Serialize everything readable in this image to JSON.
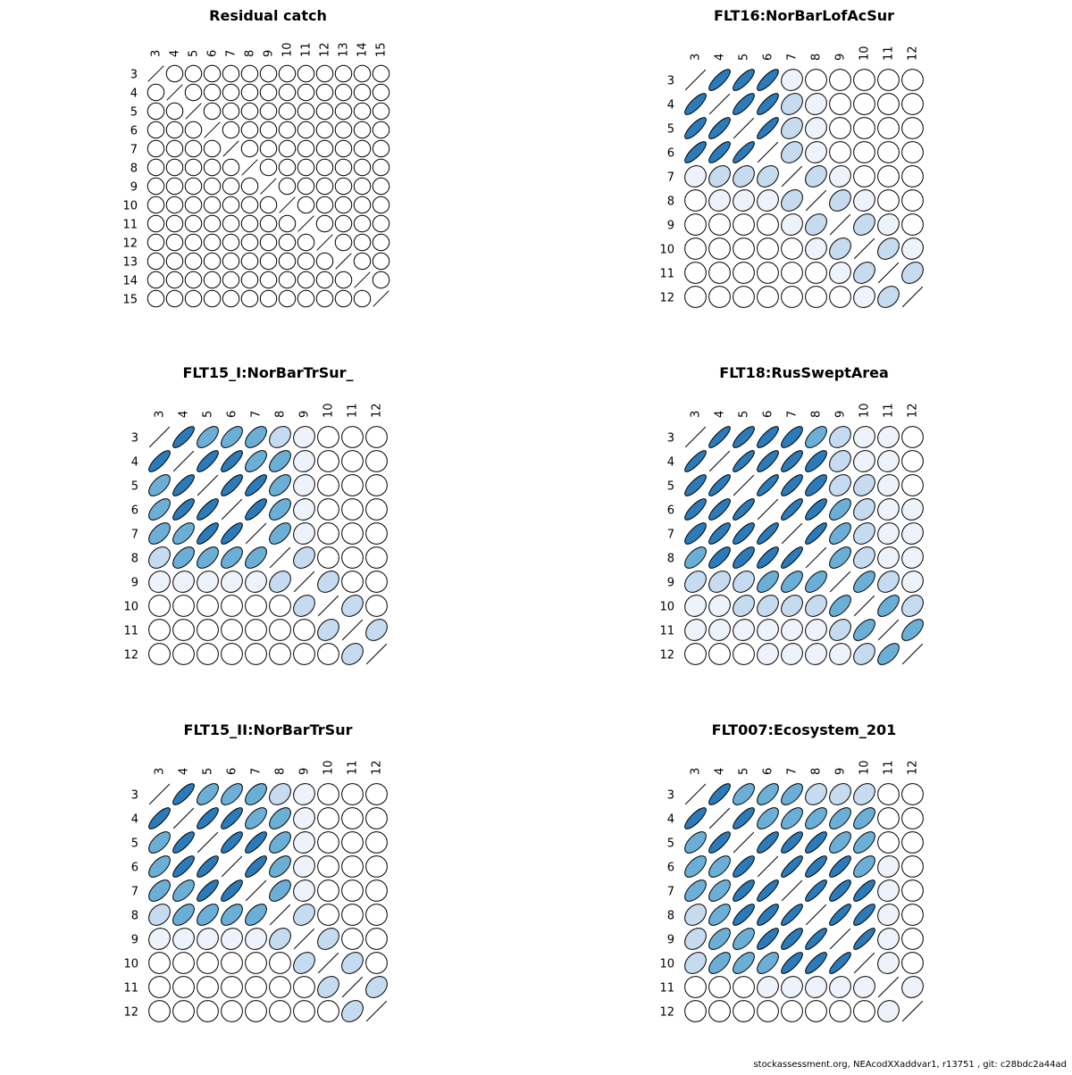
{
  "footer": "stockassessment.org, NEAcodXXaddvar1, r13751 , git: c28bdc2a44ad",
  "colors": {
    "outline": "#000000",
    "fill_scale": [
      "#ffffff",
      "#eef2fb",
      "#c6dbef",
      "#6baed6",
      "#2b7bba"
    ]
  },
  "chart_data": [
    {
      "type": "heatmap",
      "title": "Residual catch",
      "labels": [
        "3",
        "4",
        "5",
        "6",
        "7",
        "8",
        "9",
        "10",
        "11",
        "12",
        "13",
        "14",
        "15"
      ],
      "matrix": [
        [
          1,
          0,
          0,
          0,
          0,
          0,
          0,
          0,
          0,
          0,
          0,
          0,
          0
        ],
        [
          0,
          1,
          0,
          0,
          0,
          0,
          0,
          0,
          0,
          0,
          0,
          0,
          0
        ],
        [
          0,
          0,
          1,
          0,
          0,
          0,
          0,
          0,
          0,
          0,
          0,
          0,
          0
        ],
        [
          0,
          0,
          0,
          1,
          0,
          0,
          0,
          0,
          0,
          0,
          0,
          0,
          0
        ],
        [
          0,
          0,
          0,
          0,
          1,
          0,
          0,
          0,
          0,
          0,
          0,
          0,
          0
        ],
        [
          0,
          0,
          0,
          0,
          0,
          1,
          0,
          0,
          0,
          0,
          0,
          0,
          0
        ],
        [
          0,
          0,
          0,
          0,
          0,
          0,
          1,
          0,
          0,
          0,
          0,
          0,
          0
        ],
        [
          0,
          0,
          0,
          0,
          0,
          0,
          0,
          1,
          0,
          0,
          0,
          0,
          0
        ],
        [
          0,
          0,
          0,
          0,
          0,
          0,
          0,
          0,
          1,
          0,
          0,
          0,
          0
        ],
        [
          0,
          0,
          0,
          0,
          0,
          0,
          0,
          0,
          0,
          1,
          0,
          0,
          0
        ],
        [
          0,
          0,
          0,
          0,
          0,
          0,
          0,
          0,
          0,
          0,
          1,
          0,
          0
        ],
        [
          0,
          0,
          0,
          0,
          0,
          0,
          0,
          0,
          0,
          0,
          0,
          1,
          0
        ],
        [
          0,
          0,
          0,
          0,
          0,
          0,
          0,
          0,
          0,
          0,
          0,
          0,
          1
        ]
      ]
    },
    {
      "type": "heatmap",
      "title": "FLT16:NorBarLofAcSur",
      "labels": [
        "3",
        "4",
        "5",
        "6",
        "7",
        "8",
        "9",
        "10",
        "11",
        "12"
      ],
      "matrix": [
        [
          1,
          0.8,
          0.8,
          0.8,
          0.1,
          0,
          0,
          0,
          0,
          0
        ],
        [
          0.8,
          1,
          0.8,
          0.8,
          0.3,
          0.1,
          0,
          0,
          0,
          0
        ],
        [
          0.8,
          0.8,
          1,
          0.85,
          0.3,
          0.1,
          0,
          0,
          0,
          0
        ],
        [
          0.8,
          0.8,
          0.85,
          1,
          0.3,
          0.1,
          0,
          0,
          0,
          0
        ],
        [
          0.1,
          0.3,
          0.3,
          0.3,
          1,
          0.3,
          0.1,
          0,
          0,
          0
        ],
        [
          0,
          0.1,
          0.1,
          0.1,
          0.3,
          1,
          0.3,
          0.1,
          0,
          0
        ],
        [
          0,
          0,
          0,
          0,
          0.1,
          0.3,
          1,
          0.3,
          0.1,
          0
        ],
        [
          0,
          0,
          0,
          0,
          0,
          0.1,
          0.3,
          1,
          0.3,
          0.1
        ],
        [
          0,
          0,
          0,
          0,
          0,
          0,
          0.1,
          0.3,
          1,
          0.3
        ],
        [
          0,
          0,
          0,
          0,
          0,
          0,
          0,
          0.1,
          0.3,
          1
        ]
      ]
    },
    {
      "type": "heatmap",
      "title": "FLT15_I:NorBarTrSur_",
      "labels": [
        "3",
        "4",
        "5",
        "6",
        "7",
        "8",
        "9",
        "10",
        "11",
        "12"
      ],
      "matrix": [
        [
          1,
          0.8,
          0.6,
          0.6,
          0.55,
          0.3,
          0.1,
          0,
          0,
          0
        ],
        [
          0.8,
          1,
          0.8,
          0.8,
          0.6,
          0.55,
          0.1,
          0,
          0,
          0
        ],
        [
          0.6,
          0.8,
          1,
          0.8,
          0.8,
          0.55,
          0.1,
          0,
          0,
          0
        ],
        [
          0.6,
          0.8,
          0.8,
          1,
          0.8,
          0.55,
          0.1,
          0,
          0,
          0
        ],
        [
          0.55,
          0.6,
          0.8,
          0.8,
          1,
          0.55,
          0.1,
          0,
          0,
          0
        ],
        [
          0.3,
          0.55,
          0.55,
          0.55,
          0.55,
          1,
          0.3,
          0,
          0,
          0
        ],
        [
          0.1,
          0.1,
          0.1,
          0.1,
          0.1,
          0.3,
          1,
          0.3,
          0,
          0
        ],
        [
          0,
          0,
          0,
          0,
          0,
          0,
          0.3,
          1,
          0.3,
          0
        ],
        [
          0,
          0,
          0,
          0,
          0,
          0,
          0,
          0.3,
          1,
          0.3
        ],
        [
          0,
          0,
          0,
          0,
          0,
          0,
          0,
          0,
          0.3,
          1
        ]
      ]
    },
    {
      "type": "heatmap",
      "title": "FLT18:RusSweptArea",
      "labels": [
        "3",
        "4",
        "5",
        "6",
        "7",
        "8",
        "9",
        "10",
        "11",
        "12"
      ],
      "matrix": [
        [
          1,
          0.85,
          0.8,
          0.8,
          0.75,
          0.6,
          0.3,
          0.1,
          0.1,
          0
        ],
        [
          0.85,
          1,
          0.85,
          0.8,
          0.8,
          0.75,
          0.3,
          0.1,
          0.1,
          0
        ],
        [
          0.8,
          0.85,
          1,
          0.85,
          0.8,
          0.75,
          0.3,
          0.3,
          0.1,
          0
        ],
        [
          0.8,
          0.8,
          0.85,
          1,
          0.85,
          0.8,
          0.6,
          0.3,
          0.1,
          0.1
        ],
        [
          0.75,
          0.8,
          0.8,
          0.85,
          1,
          0.85,
          0.6,
          0.3,
          0.1,
          0.1
        ],
        [
          0.6,
          0.75,
          0.75,
          0.8,
          0.85,
          1,
          0.6,
          0.3,
          0.1,
          0.1
        ],
        [
          0.3,
          0.3,
          0.3,
          0.6,
          0.6,
          0.6,
          1,
          0.6,
          0.3,
          0.1
        ],
        [
          0.1,
          0.1,
          0.3,
          0.3,
          0.3,
          0.3,
          0.6,
          1,
          0.6,
          0.3
        ],
        [
          0.1,
          0.1,
          0.1,
          0.1,
          0.1,
          0.1,
          0.3,
          0.6,
          1,
          0.6
        ],
        [
          0,
          0,
          0,
          0.1,
          0.1,
          0.1,
          0.1,
          0.3,
          0.6,
          1
        ]
      ]
    },
    {
      "type": "heatmap",
      "title": "FLT15_II:NorBarTrSur",
      "labels": [
        "3",
        "4",
        "5",
        "6",
        "7",
        "8",
        "9",
        "10",
        "11",
        "12"
      ],
      "matrix": [
        [
          1,
          0.8,
          0.6,
          0.6,
          0.55,
          0.3,
          0.1,
          0,
          0,
          0
        ],
        [
          0.8,
          1,
          0.8,
          0.8,
          0.6,
          0.55,
          0.1,
          0,
          0,
          0
        ],
        [
          0.6,
          0.8,
          1,
          0.8,
          0.8,
          0.55,
          0.1,
          0,
          0,
          0
        ],
        [
          0.6,
          0.8,
          0.8,
          1,
          0.8,
          0.55,
          0.1,
          0,
          0,
          0
        ],
        [
          0.55,
          0.6,
          0.8,
          0.8,
          1,
          0.55,
          0.1,
          0,
          0,
          0
        ],
        [
          0.3,
          0.55,
          0.55,
          0.55,
          0.55,
          1,
          0.3,
          0,
          0,
          0
        ],
        [
          0.1,
          0.1,
          0.1,
          0.1,
          0.1,
          0.3,
          1,
          0.3,
          0,
          0
        ],
        [
          0,
          0,
          0,
          0,
          0,
          0,
          0.3,
          1,
          0.3,
          0
        ],
        [
          0,
          0,
          0,
          0,
          0,
          0,
          0,
          0.3,
          1,
          0.3
        ],
        [
          0,
          0,
          0,
          0,
          0,
          0,
          0,
          0,
          0.3,
          1
        ]
      ]
    },
    {
      "type": "heatmap",
      "title": "FLT007:Ecosystem_201",
      "labels": [
        "3",
        "4",
        "5",
        "6",
        "7",
        "8",
        "9",
        "10",
        "11",
        "12"
      ],
      "matrix": [
        [
          1,
          0.8,
          0.6,
          0.6,
          0.6,
          0.3,
          0.3,
          0.3,
          0,
          0
        ],
        [
          0.8,
          1,
          0.8,
          0.6,
          0.6,
          0.6,
          0.6,
          0.6,
          0,
          0
        ],
        [
          0.6,
          0.8,
          1,
          0.8,
          0.8,
          0.8,
          0.6,
          0.6,
          0,
          0
        ],
        [
          0.6,
          0.6,
          0.8,
          1,
          0.85,
          0.8,
          0.8,
          0.6,
          0.1,
          0
        ],
        [
          0.6,
          0.6,
          0.8,
          0.85,
          1,
          0.85,
          0.8,
          0.8,
          0.1,
          0
        ],
        [
          0.3,
          0.6,
          0.8,
          0.8,
          0.85,
          1,
          0.85,
          0.8,
          0.1,
          0
        ],
        [
          0.3,
          0.6,
          0.6,
          0.8,
          0.8,
          0.85,
          1,
          0.85,
          0.1,
          0
        ],
        [
          0.3,
          0.6,
          0.6,
          0.6,
          0.8,
          0.8,
          0.85,
          1,
          0.1,
          0
        ],
        [
          0,
          0,
          0,
          0.1,
          0.1,
          0.1,
          0.1,
          0.1,
          1,
          0.1
        ],
        [
          0,
          0,
          0,
          0,
          0,
          0,
          0,
          0,
          0.1,
          1
        ]
      ]
    }
  ]
}
